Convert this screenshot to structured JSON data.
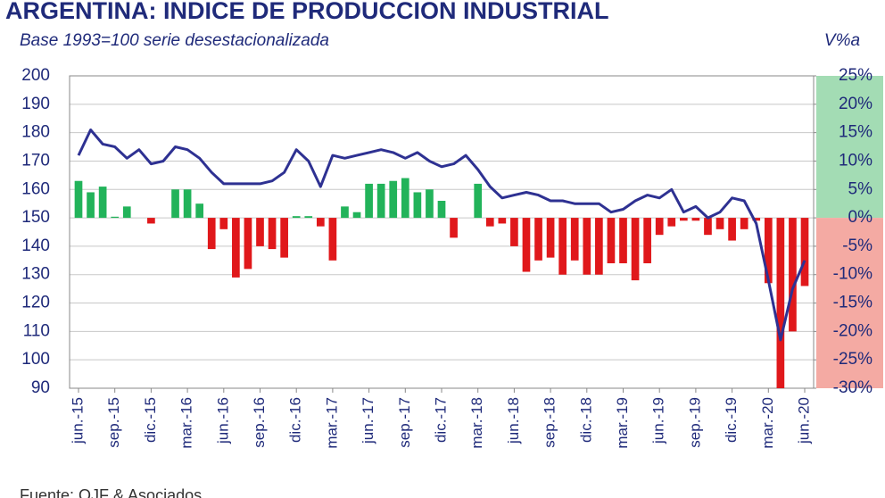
{
  "chart_data": {
    "type": "bar_line",
    "title": "ARGENTINA: INDICE DE PRODUCCION INDUSTRIAL",
    "subtitle": "Base 1993=100 serie desestacionalizada",
    "y2_label": "V%a",
    "source": "Fuente: OJF & Asociados",
    "categories": [
      "jun.-15",
      null,
      null,
      "sep.-15",
      null,
      null,
      "dic.-15",
      null,
      null,
      "mar.-16",
      null,
      null,
      "jun.-16",
      null,
      null,
      "sep.-16",
      null,
      null,
      "dic.-16",
      null,
      null,
      "mar.-17",
      null,
      null,
      "jun.-17",
      null,
      null,
      "sep.-17",
      null,
      null,
      "dic.-17",
      null,
      null,
      "mar.-18",
      null,
      null,
      "jun.-18",
      null,
      null,
      "sep.-18",
      null,
      null,
      "dic.-18",
      null,
      null,
      "mar.-19",
      null,
      null,
      "jun.-19",
      null,
      null,
      "sep.-19",
      null,
      null,
      "dic.-19",
      null,
      null,
      "mar.-20",
      null,
      null,
      "jun.-20"
    ],
    "series": [
      {
        "type": "line",
        "color": "#2e3192",
        "values": [
          172,
          181,
          176,
          175,
          171,
          174,
          169,
          170,
          175,
          174,
          171,
          166,
          162,
          162,
          162,
          162,
          163,
          166,
          174,
          170,
          161,
          172,
          171,
          172,
          173,
          174,
          173,
          171,
          173,
          170,
          168,
          169,
          172,
          167,
          161,
          157,
          158,
          159,
          158,
          156,
          156,
          155,
          155,
          155,
          152,
          153,
          156,
          158,
          157,
          160,
          152,
          154,
          150,
          152,
          157,
          156,
          148,
          128,
          107,
          125,
          135
        ]
      },
      {
        "type": "bar",
        "axis": "y2",
        "color": "#22b35a",
        "negative_color": "#e0181b",
        "values": [
          6.5,
          4.5,
          5.5,
          0.2,
          2,
          0,
          -1,
          0,
          5,
          5,
          2.5,
          -5.5,
          -2,
          -10.5,
          -9,
          -5,
          -5.5,
          -7,
          0.3,
          0.3,
          -1.5,
          -7.5,
          2,
          1,
          6,
          6,
          6.5,
          7,
          4.5,
          5,
          3,
          -3.5,
          0,
          6,
          -1.5,
          -1,
          -5,
          -9.5,
          -7.5,
          -7,
          -10,
          -7.5,
          -10,
          -10,
          -8,
          -8,
          -11,
          -8,
          -3,
          -1.5,
          -0.5,
          -0.5,
          -3,
          -2,
          -4,
          -2,
          -0.5,
          -11.5,
          -30,
          -20,
          -12
        ]
      }
    ],
    "ylim": [
      90,
      200
    ],
    "yticks": [
      90,
      100,
      110,
      120,
      130,
      140,
      150,
      160,
      170,
      180,
      190,
      200
    ],
    "y2lim": [
      -30,
      25
    ],
    "y2ticks": [
      {
        "value": -30,
        "label": "-30%"
      },
      {
        "value": -25,
        "label": "-25%"
      },
      {
        "value": -20,
        "label": "-20%"
      },
      {
        "value": -15,
        "label": "-15%"
      },
      {
        "value": -10,
        "label": "-10%"
      },
      {
        "value": -5,
        "label": "-5%"
      },
      {
        "value": 0,
        "label": "0%"
      },
      {
        "value": 5,
        "label": "5%"
      },
      {
        "value": 10,
        "label": "10%"
      },
      {
        "value": 15,
        "label": "15%"
      },
      {
        "value": 20,
        "label": "20%"
      },
      {
        "value": 25,
        "label": "25%"
      }
    ],
    "grid": true
  }
}
